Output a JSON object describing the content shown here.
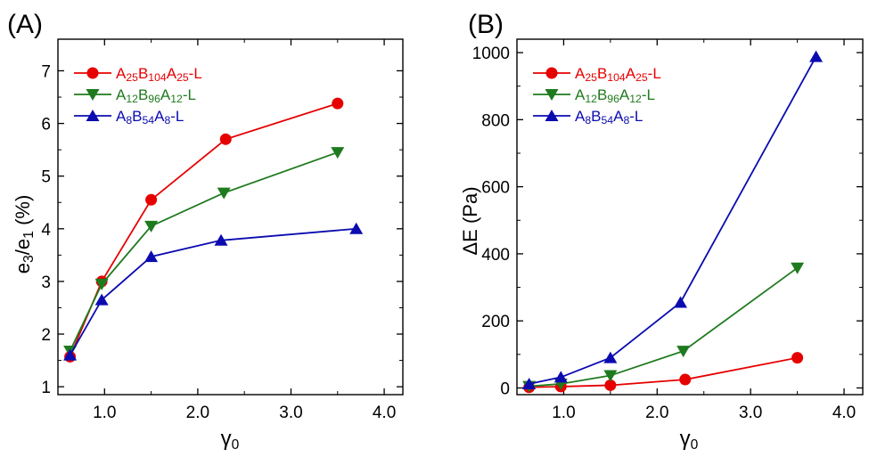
{
  "chart_data": [
    {
      "panel_label": "(A)",
      "type": "line",
      "xlabel": "γ",
      "xlabel_sub": "0",
      "ylabel_parts": [
        {
          "t": "e"
        },
        {
          "t": "3",
          "sub": true
        },
        {
          "t": "/e"
        },
        {
          "t": "1",
          "sub": true
        },
        {
          "t": " (%)"
        }
      ],
      "xlim": [
        0.5,
        4.2
      ],
      "ylim": [
        0.85,
        7.6
      ],
      "x_ticks": [
        1.0,
        2.0,
        3.0,
        4.0
      ],
      "x_tick_labels": [
        "1.0",
        "2.0",
        "3.0",
        "4.0"
      ],
      "y_ticks": [
        1,
        2,
        3,
        4,
        5,
        6,
        7
      ],
      "y_tick_labels": [
        "1",
        "2",
        "3",
        "4",
        "5",
        "6",
        "7"
      ],
      "grid": false,
      "legend_position": "top-left",
      "series": [
        {
          "name_parts": [
            {
              "t": "A"
            },
            {
              "t": "25",
              "sub": true
            },
            {
              "t": "B"
            },
            {
              "t": "104",
              "sub": true
            },
            {
              "t": "A"
            },
            {
              "t": "25",
              "sub": true
            },
            {
              "t": "-L"
            }
          ],
          "color": "#e60000",
          "marker": "circle",
          "x": [
            0.63,
            0.97,
            1.5,
            2.3,
            3.5
          ],
          "y": [
            1.57,
            3.0,
            4.55,
            5.7,
            6.38
          ]
        },
        {
          "name_parts": [
            {
              "t": "A"
            },
            {
              "t": "12",
              "sub": true
            },
            {
              "t": "B"
            },
            {
              "t": "96",
              "sub": true
            },
            {
              "t": "A"
            },
            {
              "t": "12",
              "sub": true
            },
            {
              "t": "-L"
            }
          ],
          "color": "#1e7a1e",
          "marker": "triangle-down",
          "x": [
            0.63,
            0.97,
            1.5,
            2.28,
            3.5
          ],
          "y": [
            1.68,
            2.95,
            4.05,
            4.68,
            5.45
          ]
        },
        {
          "name_parts": [
            {
              "t": "A"
            },
            {
              "t": "8",
              "sub": true
            },
            {
              "t": "B"
            },
            {
              "t": "54",
              "sub": true
            },
            {
              "t": "A"
            },
            {
              "t": "8",
              "sub": true
            },
            {
              "t": "-L"
            }
          ],
          "color": "#0b0bb0",
          "marker": "triangle-up",
          "x": [
            0.63,
            0.97,
            1.5,
            2.25,
            3.7
          ],
          "y": [
            1.6,
            2.65,
            3.47,
            3.78,
            4.0
          ]
        }
      ]
    },
    {
      "panel_label": "(B)",
      "type": "line",
      "xlabel": "γ",
      "xlabel_sub": "0",
      "ylabel_parts": [
        {
          "t": "ΔE (Pa)"
        }
      ],
      "xlim": [
        0.5,
        4.2
      ],
      "ylim": [
        -20,
        1040
      ],
      "x_ticks": [
        1.0,
        2.0,
        3.0,
        4.0
      ],
      "x_tick_labels": [
        "1.0",
        "2.0",
        "3.0",
        "4.0"
      ],
      "y_ticks": [
        0,
        200,
        400,
        600,
        800,
        1000
      ],
      "y_tick_labels": [
        "0",
        "200",
        "400",
        "600",
        "800",
        "1000"
      ],
      "grid": false,
      "legend_position": "top-left",
      "series": [
        {
          "name_parts": [
            {
              "t": "A"
            },
            {
              "t": "25",
              "sub": true
            },
            {
              "t": "B"
            },
            {
              "t": "104",
              "sub": true
            },
            {
              "t": "A"
            },
            {
              "t": "25",
              "sub": true
            },
            {
              "t": "-L"
            }
          ],
          "color": "#e60000",
          "marker": "circle",
          "x": [
            0.63,
            0.97,
            1.5,
            2.3,
            3.5
          ],
          "y": [
            2,
            4,
            8,
            25,
            90
          ]
        },
        {
          "name_parts": [
            {
              "t": "A"
            },
            {
              "t": "12",
              "sub": true
            },
            {
              "t": "B"
            },
            {
              "t": "96",
              "sub": true
            },
            {
              "t": "A"
            },
            {
              "t": "12",
              "sub": true
            },
            {
              "t": "-L"
            }
          ],
          "color": "#1e7a1e",
          "marker": "triangle-down",
          "x": [
            0.63,
            0.97,
            1.5,
            2.28,
            3.5
          ],
          "y": [
            5,
            12,
            37,
            110,
            358
          ]
        },
        {
          "name_parts": [
            {
              "t": "A"
            },
            {
              "t": "8",
              "sub": true
            },
            {
              "t": "B"
            },
            {
              "t": "54",
              "sub": true
            },
            {
              "t": "A"
            },
            {
              "t": "8",
              "sub": true
            },
            {
              "t": "-L"
            }
          ],
          "color": "#0b0bb0",
          "marker": "triangle-up",
          "x": [
            0.63,
            0.97,
            1.5,
            2.25,
            3.7
          ],
          "y": [
            12,
            32,
            90,
            255,
            988
          ]
        }
      ]
    }
  ]
}
